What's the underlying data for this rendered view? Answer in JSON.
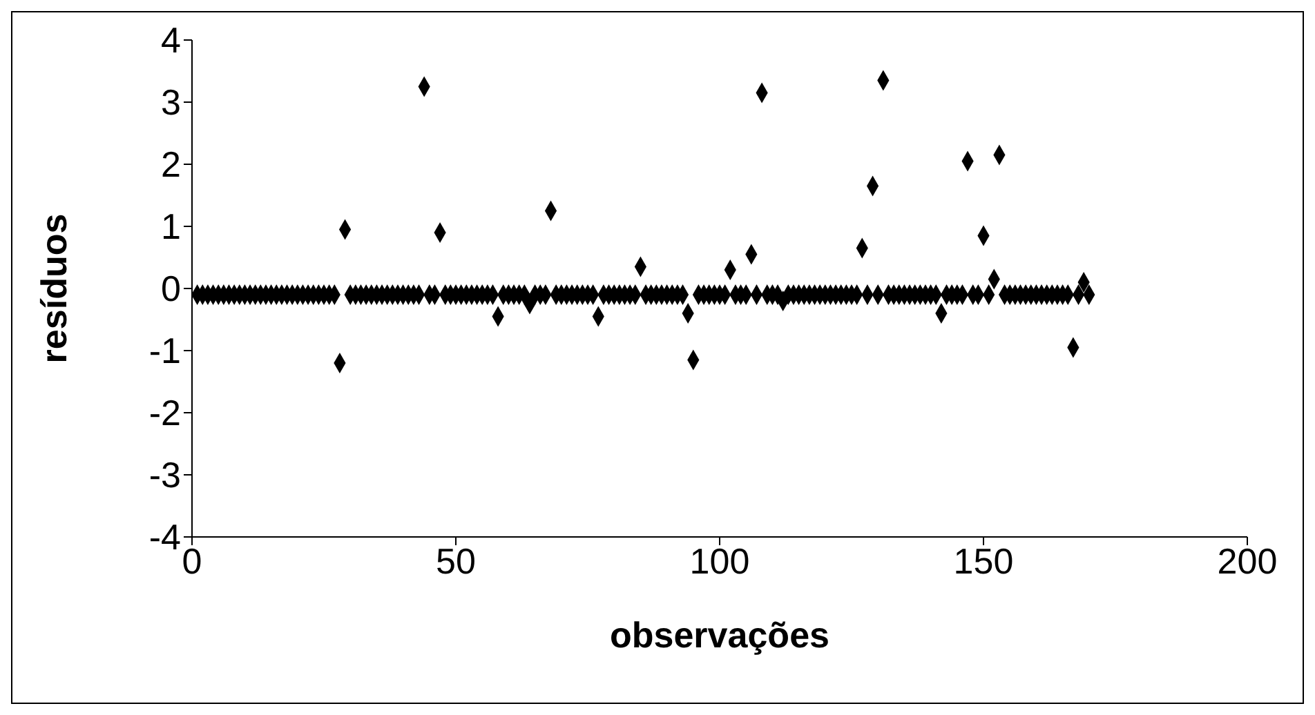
{
  "chart_data": {
    "type": "scatter",
    "xlabel": "observações",
    "ylabel": "resíduos",
    "xlim": [
      0,
      200
    ],
    "xticks": [
      0,
      50,
      100,
      150,
      200
    ],
    "ylim": [
      -4,
      4
    ],
    "yticks": [
      -4,
      -3,
      -2,
      -1,
      0,
      1,
      2,
      3,
      4
    ],
    "marker": "diamond",
    "series": [
      {
        "color": "#000000",
        "x": [
          1,
          2,
          3,
          4,
          5,
          6,
          7,
          8,
          9,
          10,
          11,
          12,
          13,
          14,
          15,
          16,
          17,
          18,
          19,
          20,
          21,
          22,
          23,
          24,
          25,
          26,
          27,
          30,
          31,
          32,
          33,
          34,
          35,
          36,
          37,
          38,
          39,
          40,
          41,
          42,
          43,
          45,
          46,
          48,
          49,
          50,
          51,
          52,
          53,
          54,
          55,
          56,
          57,
          59,
          60,
          61,
          62,
          63,
          65,
          66,
          67,
          69,
          70,
          71,
          72,
          73,
          74,
          75,
          76,
          78,
          79,
          80,
          81,
          82,
          83,
          84,
          86,
          87,
          88,
          89,
          90,
          91,
          92,
          93,
          96,
          97,
          98,
          99,
          100,
          101,
          103,
          104,
          105,
          107,
          109,
          110,
          111,
          113,
          114,
          115,
          116,
          117,
          118,
          119,
          120,
          121,
          122,
          123,
          124,
          125,
          126,
          128,
          130,
          132,
          133,
          134,
          135,
          136,
          137,
          138,
          139,
          140,
          141,
          143,
          144,
          145,
          146,
          148,
          149,
          151,
          154,
          155,
          156,
          157,
          158,
          159,
          160,
          161,
          162,
          163,
          164,
          165,
          166,
          168,
          170,
          28,
          29,
          44,
          47,
          58,
          64,
          68,
          77,
          85,
          94,
          95,
          102,
          106,
          108,
          112,
          127,
          129,
          131,
          142,
          147,
          150,
          152,
          153,
          167,
          169
        ],
        "values": [
          -0.1,
          -0.1,
          -0.1,
          -0.1,
          -0.1,
          -0.1,
          -0.1,
          -0.1,
          -0.1,
          -0.1,
          -0.1,
          -0.1,
          -0.1,
          -0.1,
          -0.1,
          -0.1,
          -0.1,
          -0.1,
          -0.1,
          -0.1,
          -0.1,
          -0.1,
          -0.1,
          -0.1,
          -0.1,
          -0.1,
          -0.1,
          -0.1,
          -0.1,
          -0.1,
          -0.1,
          -0.1,
          -0.1,
          -0.1,
          -0.1,
          -0.1,
          -0.1,
          -0.1,
          -0.1,
          -0.1,
          -0.1,
          -0.1,
          -0.1,
          -0.1,
          -0.1,
          -0.1,
          -0.1,
          -0.1,
          -0.1,
          -0.1,
          -0.1,
          -0.1,
          -0.1,
          -0.1,
          -0.1,
          -0.1,
          -0.1,
          -0.1,
          -0.1,
          -0.1,
          -0.1,
          -0.1,
          -0.1,
          -0.1,
          -0.1,
          -0.1,
          -0.1,
          -0.1,
          -0.1,
          -0.1,
          -0.1,
          -0.1,
          -0.1,
          -0.1,
          -0.1,
          -0.1,
          -0.1,
          -0.1,
          -0.1,
          -0.1,
          -0.1,
          -0.1,
          -0.1,
          -0.1,
          -0.1,
          -0.1,
          -0.1,
          -0.1,
          -0.1,
          -0.1,
          -0.1,
          -0.1,
          -0.1,
          -0.1,
          -0.1,
          -0.1,
          -0.1,
          -0.1,
          -0.1,
          -0.1,
          -0.1,
          -0.1,
          -0.1,
          -0.1,
          -0.1,
          -0.1,
          -0.1,
          -0.1,
          -0.1,
          -0.1,
          -0.1,
          -0.1,
          -0.1,
          -0.1,
          -0.1,
          -0.1,
          -0.1,
          -0.1,
          -0.1,
          -0.1,
          -0.1,
          -0.1,
          -0.1,
          -0.1,
          -0.1,
          -0.1,
          -0.1,
          -0.1,
          -0.1,
          -0.1,
          -0.1,
          -0.1,
          -0.1,
          -0.1,
          -0.1,
          -0.1,
          -0.1,
          -0.1,
          -0.1,
          -0.1,
          -0.1,
          -0.1,
          -0.1,
          -0.1,
          -0.1,
          -1.2,
          0.95,
          3.25,
          0.9,
          -0.45,
          -0.25,
          1.25,
          -0.45,
          0.35,
          -0.4,
          -1.15,
          0.3,
          0.55,
          3.15,
          -0.2,
          0.65,
          1.65,
          3.35,
          -0.4,
          2.05,
          0.85,
          0.15,
          2.15,
          -0.95,
          0.1
        ]
      }
    ]
  }
}
